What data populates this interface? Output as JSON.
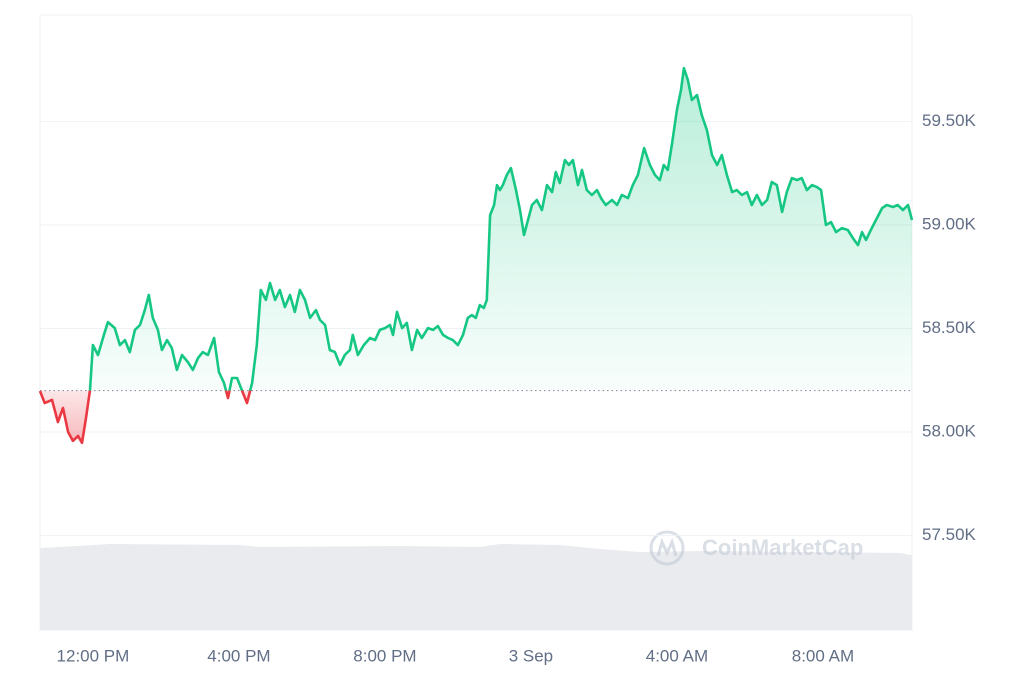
{
  "chart_data": {
    "type": "line",
    "x": [
      -1.45,
      -1.32,
      -1.12,
      -0.96,
      -0.82,
      -0.68,
      -0.55,
      -0.41,
      -0.3,
      -0.19,
      -0.08,
      0,
      0.14,
      0.3,
      0.41,
      0.6,
      0.74,
      0.88,
      1.01,
      1.15,
      1.29,
      1.42,
      1.53,
      1.64,
      1.78,
      1.89,
      2.03,
      2.16,
      2.3,
      2.44,
      2.6,
      2.74,
      2.88,
      3.01,
      3.15,
      3.32,
      3.45,
      3.59,
      3.7,
      3.81,
      3.95,
      4.08,
      4.22,
      4.36,
      4.49,
      4.6,
      4.74,
      4.85,
      4.99,
      5.12,
      5.26,
      5.4,
      5.53,
      5.67,
      5.81,
      5.95,
      6.11,
      6.22,
      6.36,
      6.49,
      6.63,
      6.77,
      6.9,
      7.04,
      7.12,
      7.26,
      7.42,
      7.59,
      7.73,
      7.86,
      8.0,
      8.14,
      8.22,
      8.33,
      8.47,
      8.6,
      8.74,
      8.88,
      9.01,
      9.18,
      9.32,
      9.45,
      9.59,
      9.73,
      9.86,
      10.0,
      10.14,
      10.27,
      10.38,
      10.49,
      10.6,
      10.71,
      10.79,
      10.88,
      10.99,
      11.07,
      11.15,
      11.23,
      11.34,
      11.45,
      11.59,
      11.7,
      11.81,
      11.92,
      12.03,
      12.16,
      12.3,
      12.44,
      12.58,
      12.68,
      12.79,
      12.93,
      13.04,
      13.15,
      13.29,
      13.4,
      13.53,
      13.67,
      13.81,
      13.92,
      14.05,
      14.22,
      14.36,
      14.49,
      14.66,
      14.79,
      14.93,
      15.1,
      15.26,
      15.4,
      15.53,
      15.64,
      15.75,
      15.86,
      16.0,
      16.11,
      16.19,
      16.3,
      16.41,
      16.55,
      16.68,
      16.82,
      16.96,
      17.1,
      17.23,
      17.37,
      17.51,
      17.64,
      17.78,
      17.92,
      18.05,
      18.19,
      18.33,
      18.47,
      18.6,
      18.74,
      18.88,
      19.01,
      19.15,
      19.29,
      19.42,
      19.56,
      19.7,
      19.84,
      19.95,
      20.08,
      20.22,
      20.36,
      20.52,
      20.68,
      20.82,
      20.96,
      21.07,
      21.18,
      21.34,
      21.48,
      21.62,
      21.75,
      21.92,
      22.05,
      22.19,
      22.33,
      22.44
    ],
    "values": [
      58198,
      58140,
      58155,
      58048,
      58116,
      58000,
      57957,
      57981,
      57947,
      58068,
      58203,
      58420,
      58372,
      58469,
      58531,
      58502,
      58420,
      58444,
      58386,
      58493,
      58517,
      58589,
      58662,
      58551,
      58493,
      58396,
      58444,
      58406,
      58300,
      58372,
      58338,
      58300,
      58357,
      58386,
      58372,
      58454,
      58290,
      58237,
      58164,
      58261,
      58261,
      58203,
      58140,
      58237,
      58420,
      58686,
      58638,
      58720,
      58638,
      58686,
      58604,
      58662,
      58580,
      58686,
      58638,
      58551,
      58589,
      58541,
      58517,
      58396,
      58386,
      58324,
      58372,
      58396,
      58469,
      58372,
      58420,
      58454,
      58444,
      58493,
      58502,
      58517,
      58469,
      58580,
      58502,
      58527,
      58396,
      58493,
      58454,
      58502,
      58493,
      58512,
      58469,
      58454,
      58444,
      58420,
      58469,
      58551,
      58565,
      58551,
      58613,
      58599,
      58638,
      59048,
      59097,
      59193,
      59169,
      59193,
      59242,
      59275,
      59169,
      59072,
      58952,
      59024,
      59097,
      59121,
      59072,
      59193,
      59159,
      59256,
      59203,
      59314,
      59290,
      59314,
      59193,
      59266,
      59169,
      59145,
      59169,
      59130,
      59097,
      59121,
      59097,
      59145,
      59130,
      59193,
      59242,
      59372,
      59290,
      59242,
      59217,
      59290,
      59266,
      59386,
      59556,
      59652,
      59758,
      59700,
      59604,
      59628,
      59531,
      59459,
      59338,
      59290,
      59338,
      59242,
      59159,
      59169,
      59145,
      59159,
      59097,
      59145,
      59097,
      59121,
      59208,
      59193,
      59063,
      59159,
      59227,
      59217,
      59227,
      59169,
      59193,
      59183,
      59169,
      59000,
      59014,
      58966,
      58985,
      58976,
      58937,
      58903,
      58966,
      58928,
      58985,
      59034,
      59082,
      59097,
      59087,
      59097,
      59072,
      59097,
      59024
    ],
    "baseline": 58200,
    "color": "#16c784",
    "color_below": "#ea3943",
    "xlim": [
      -1.45,
      22.44
    ],
    "xticks": [
      {
        "value": 0,
        "label": "12:00 PM"
      },
      {
        "value": 4,
        "label": "4:00 PM"
      },
      {
        "value": 8,
        "label": "8:00 PM"
      },
      {
        "value": 12,
        "label": "3 Sep"
      },
      {
        "value": 16,
        "label": "4:00 AM"
      },
      {
        "value": 20,
        "label": "8:00 AM"
      }
    ],
    "ylim": [
      57043,
      60015
    ],
    "yticks": [
      {
        "value": 57500,
        "label": "57.50K"
      },
      {
        "value": 58000,
        "label": "58.00K"
      },
      {
        "value": 58500,
        "label": "58.50K"
      },
      {
        "value": 59000,
        "label": "59.00K"
      },
      {
        "value": 59500,
        "label": "59.50K"
      }
    ],
    "grid": true,
    "watermark": "CoinMarketCap"
  }
}
